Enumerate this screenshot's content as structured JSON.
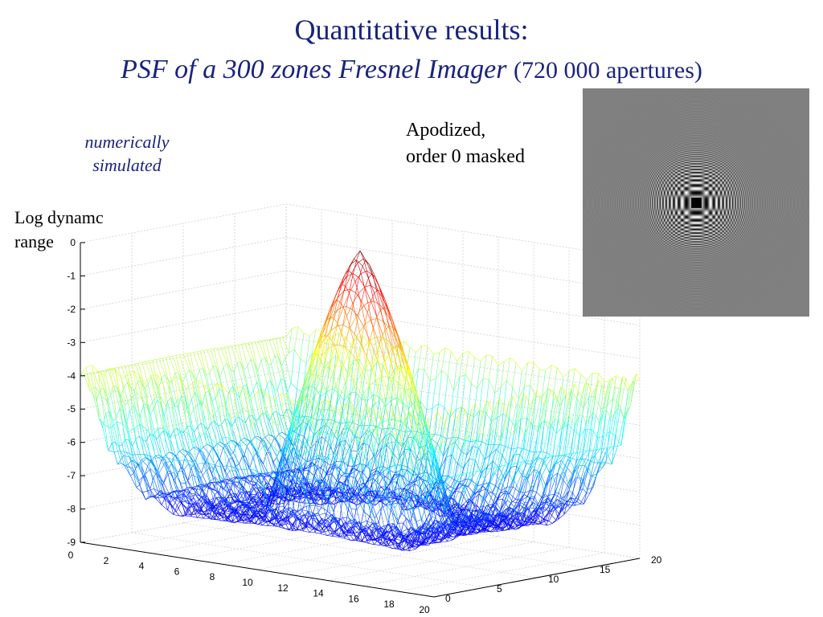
{
  "title": {
    "line1": "Quantitative results:",
    "line2_italic": "PSF of a 300 zones Fresnel Imager",
    "line2_normal": "(720 000 apertures)"
  },
  "labels": {
    "simulated_line1": "numerically",
    "simulated_line2": "simulated",
    "apodized_line1": "Apodized,",
    "apodized_line2": "order 0 masked",
    "zaxis_line1": "Log dynamc",
    "zaxis_line2": "range"
  },
  "chart_data": [
    {
      "type": "surface",
      "style": "mesh",
      "colormap": "jet",
      "title": "",
      "xlabel": "",
      "ylabel": "",
      "zlabel": "Log dynamc range",
      "x_ticks": [
        0,
        2,
        4,
        6,
        8,
        10,
        12,
        14,
        16,
        18,
        20
      ],
      "y_ticks": [
        0,
        5,
        10,
        15,
        20
      ],
      "z_ticks": [
        0,
        -1,
        -2,
        -3,
        -4,
        -5,
        -6,
        -7,
        -8,
        -9
      ],
      "xlim": [
        0,
        20
      ],
      "ylim": [
        0,
        20
      ],
      "zlim": [
        -9,
        0
      ],
      "grid": true,
      "peak": {
        "x": 10,
        "y": 10,
        "z": 0
      },
      "sidelobe_level_near_edge": -4,
      "floor_level": -8.5
    },
    {
      "type": "heatmap",
      "description_colormap": "gray",
      "pattern": "apodized Fresnel PSF (checkerboard rings, dark central core)"
    }
  ],
  "colors": {
    "title": "#1a237e",
    "background": "#ffffff",
    "image_gray": "#808080"
  }
}
